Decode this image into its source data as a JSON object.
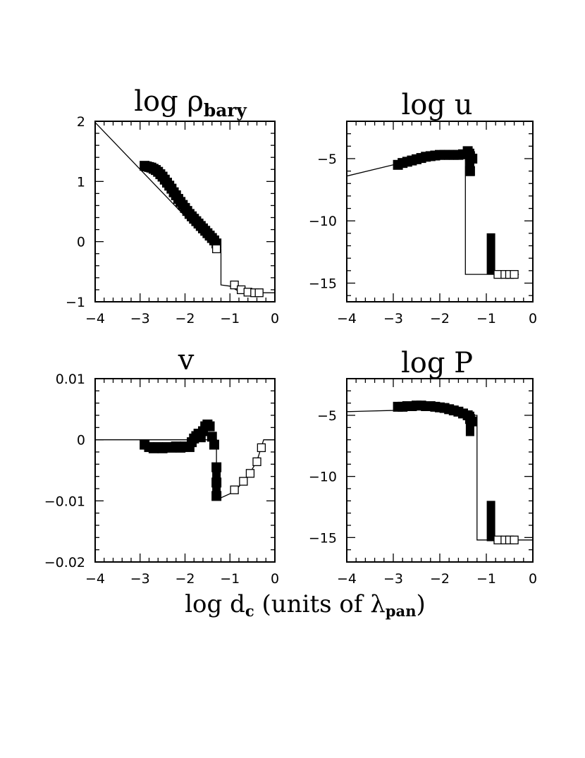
{
  "figure": {
    "xlabel": {
      "main": "log d",
      "sub1": "c",
      "mid": " (units of λ",
      "sub2": "pan",
      "end": ")"
    }
  },
  "chart_data": [
    {
      "type": "scatter",
      "title": {
        "main": "log ρ",
        "sub": "bary"
      },
      "xlim": [
        -4,
        0
      ],
      "ylim": [
        -1,
        2
      ],
      "xticks": [
        -4,
        -3,
        -2,
        -1,
        0
      ],
      "xtick_labels": [
        "−4",
        "−3",
        "−2",
        "−1",
        "0"
      ],
      "yticks": [
        -1,
        0,
        1,
        2
      ],
      "ytick_labels": [
        "−1",
        "0",
        "1",
        "2"
      ],
      "grid": false,
      "line": {
        "x": [
          -4,
          -1.3,
          -1.3,
          -1.2,
          -1.2,
          -1.0,
          -0.75,
          -0.3,
          0
        ],
        "y": [
          1.98,
          -0.12,
          -0.12,
          -0.12,
          -0.72,
          -0.74,
          -0.85,
          -0.85,
          -0.85
        ]
      },
      "filled_points": {
        "x": [
          -2.9,
          -2.85,
          -2.8,
          -2.75,
          -2.7,
          -2.65,
          -2.6,
          -2.55,
          -2.5,
          -2.45,
          -2.4,
          -2.35,
          -2.3,
          -2.25,
          -2.2,
          -2.15,
          -2.1,
          -2.05,
          -2.0,
          -1.95,
          -1.9,
          -1.85,
          -1.8,
          -1.75,
          -1.7,
          -1.65,
          -1.6,
          -1.55,
          -1.5,
          -1.45,
          -1.4,
          -1.35,
          -1.3
        ],
        "y": [
          1.26,
          1.25,
          1.24,
          1.23,
          1.21,
          1.19,
          1.16,
          1.12,
          1.08,
          1.03,
          0.98,
          0.93,
          0.88,
          0.82,
          0.77,
          0.71,
          0.66,
          0.61,
          0.56,
          0.51,
          0.46,
          0.42,
          0.38,
          0.34,
          0.3,
          0.26,
          0.22,
          0.18,
          0.14,
          0.1,
          0.06,
          0.02,
          -0.03
        ]
      },
      "open_points": {
        "x": [
          -1.3,
          -0.9,
          -0.75,
          -0.6,
          -0.45,
          -0.35
        ],
        "y": [
          -0.12,
          -0.72,
          -0.8,
          -0.84,
          -0.85,
          -0.85
        ]
      }
    },
    {
      "type": "scatter",
      "title": {
        "main": "log u",
        "sub": ""
      },
      "xlim": [
        -4,
        0
      ],
      "ylim": [
        -16.5,
        -2
      ],
      "xticks": [
        -4,
        -3,
        -2,
        -1,
        0
      ],
      "xtick_labels": [
        "−4",
        "−3",
        "−2",
        "−1",
        "0"
      ],
      "yticks": [
        -15,
        -10,
        -5
      ],
      "ytick_labels": [
        "−15",
        "−10",
        "−5"
      ],
      "grid": false,
      "line": {
        "x": [
          -4,
          -3,
          -2,
          -1.45,
          -1.45,
          -1.0,
          -0.3,
          -0.3
        ],
        "y": [
          -6.4,
          -5.5,
          -4.7,
          -4.6,
          -14.3,
          -14.3,
          -14.3,
          -14.3
        ]
      },
      "filled_points": {
        "x": [
          -2.9,
          -2.8,
          -2.7,
          -2.6,
          -2.5,
          -2.4,
          -2.3,
          -2.2,
          -2.1,
          -2.0,
          -1.9,
          -1.8,
          -1.7,
          -1.6,
          -1.5,
          -1.4,
          -1.35,
          -1.35,
          -1.3
        ],
        "y": [
          -5.5,
          -5.35,
          -5.25,
          -5.15,
          -5.05,
          -4.95,
          -4.85,
          -4.8,
          -4.75,
          -4.7,
          -4.7,
          -4.7,
          -4.7,
          -4.7,
          -4.65,
          -4.4,
          -4.8,
          -6.0,
          -5.0
        ]
      },
      "filled_bars": [
        {
          "x": -1.35,
          "y0": -6.4,
          "y1": -4.2
        },
        {
          "x": -0.9,
          "y0": -14.3,
          "y1": -11.0
        }
      ],
      "open_points": {
        "x": [
          -0.75,
          -0.6,
          -0.5,
          -0.4
        ],
        "y": [
          -14.3,
          -14.3,
          -14.3,
          -14.3
        ]
      }
    },
    {
      "type": "scatter",
      "title": {
        "main": "v",
        "sub": ""
      },
      "xlim": [
        -4,
        0
      ],
      "ylim": [
        -0.02,
        0.01
      ],
      "xticks": [
        -4,
        -3,
        -2,
        -1,
        0
      ],
      "xtick_labels": [
        "−4",
        "−3",
        "−2",
        "−1",
        "0"
      ],
      "yticks": [
        -0.02,
        -0.01,
        0,
        0.01
      ],
      "ytick_labels": [
        "−0.02",
        "−0.01",
        "0",
        "0.01"
      ],
      "grid": false,
      "line": {
        "x": [
          -4,
          -1.5,
          -1.3,
          -1.3,
          -1.2,
          -0.9,
          -0.6,
          -0.4,
          -0.25,
          0
        ],
        "y": [
          0,
          0,
          0,
          -0.0095,
          -0.0095,
          -0.0085,
          -0.006,
          -0.0035,
          0,
          0
        ]
      },
      "filled_points": {
        "x": [
          -2.9,
          -2.8,
          -2.7,
          -2.6,
          -2.5,
          -2.4,
          -2.3,
          -2.2,
          -2.1,
          -2.0,
          -1.9,
          -1.85,
          -1.8,
          -1.75,
          -1.7,
          -1.65,
          -1.6,
          -1.55,
          -1.5,
          -1.45,
          -1.4,
          -1.35,
          -1.3,
          -1.3,
          -1.3
        ],
        "y": [
          -0.0008,
          -0.0012,
          -0.0014,
          -0.0012,
          -0.0014,
          -0.0012,
          -0.0013,
          -0.0011,
          -0.0013,
          -0.0011,
          -0.0012,
          -0.0004,
          0.0002,
          0.0006,
          0.001,
          0.0004,
          0.0014,
          0.0022,
          0.0025,
          0.0022,
          0.0005,
          -0.0008,
          -0.0045,
          -0.007,
          -0.0092
        ]
      },
      "filled_bars": [
        {
          "x": -1.3,
          "y0": -0.0095,
          "y1": -0.0045
        }
      ],
      "open_points": {
        "x": [
          -0.9,
          -0.7,
          -0.55,
          -0.4,
          -0.3
        ],
        "y": [
          -0.0082,
          -0.0068,
          -0.0055,
          -0.0036,
          -0.0013
        ]
      }
    },
    {
      "type": "scatter",
      "title": {
        "main": "log P",
        "sub": ""
      },
      "xlim": [
        -4,
        0
      ],
      "ylim": [
        -17,
        -2
      ],
      "xticks": [
        -4,
        -3,
        -2,
        -1,
        0
      ],
      "xtick_labels": [
        "−4",
        "−3",
        "−2",
        "−1",
        "0"
      ],
      "yticks": [
        -15,
        -10,
        -5
      ],
      "ytick_labels": [
        "−15",
        "−10",
        "−5"
      ],
      "grid": false,
      "line": {
        "x": [
          -4,
          -3,
          -2,
          -1.5,
          -1.3,
          -1.2,
          -1.2,
          -0.9,
          -0.3,
          0
        ],
        "y": [
          -4.7,
          -4.6,
          -4.4,
          -4.6,
          -5.0,
          -5.0,
          -15.2,
          -15.2,
          -15.2,
          -15.2
        ]
      },
      "filled_points": {
        "x": [
          -2.9,
          -2.8,
          -2.7,
          -2.6,
          -2.5,
          -2.4,
          -2.3,
          -2.2,
          -2.1,
          -2.0,
          -1.9,
          -1.8,
          -1.7,
          -1.6,
          -1.5,
          -1.4,
          -1.35,
          -1.3
        ],
        "y": [
          -4.3,
          -4.3,
          -4.25,
          -4.25,
          -4.2,
          -4.2,
          -4.25,
          -4.25,
          -4.3,
          -4.35,
          -4.4,
          -4.5,
          -4.6,
          -4.7,
          -4.85,
          -5.0,
          -5.3,
          -5.5
        ]
      },
      "filled_bars": [
        {
          "x": -1.35,
          "y0": -6.7,
          "y1": -4.7
        },
        {
          "x": -0.9,
          "y0": -15.3,
          "y1": -12.0
        }
      ],
      "open_points": {
        "x": [
          -0.75,
          -0.6,
          -0.5,
          -0.4
        ],
        "y": [
          -15.2,
          -15.2,
          -15.2,
          -15.2
        ]
      }
    }
  ]
}
